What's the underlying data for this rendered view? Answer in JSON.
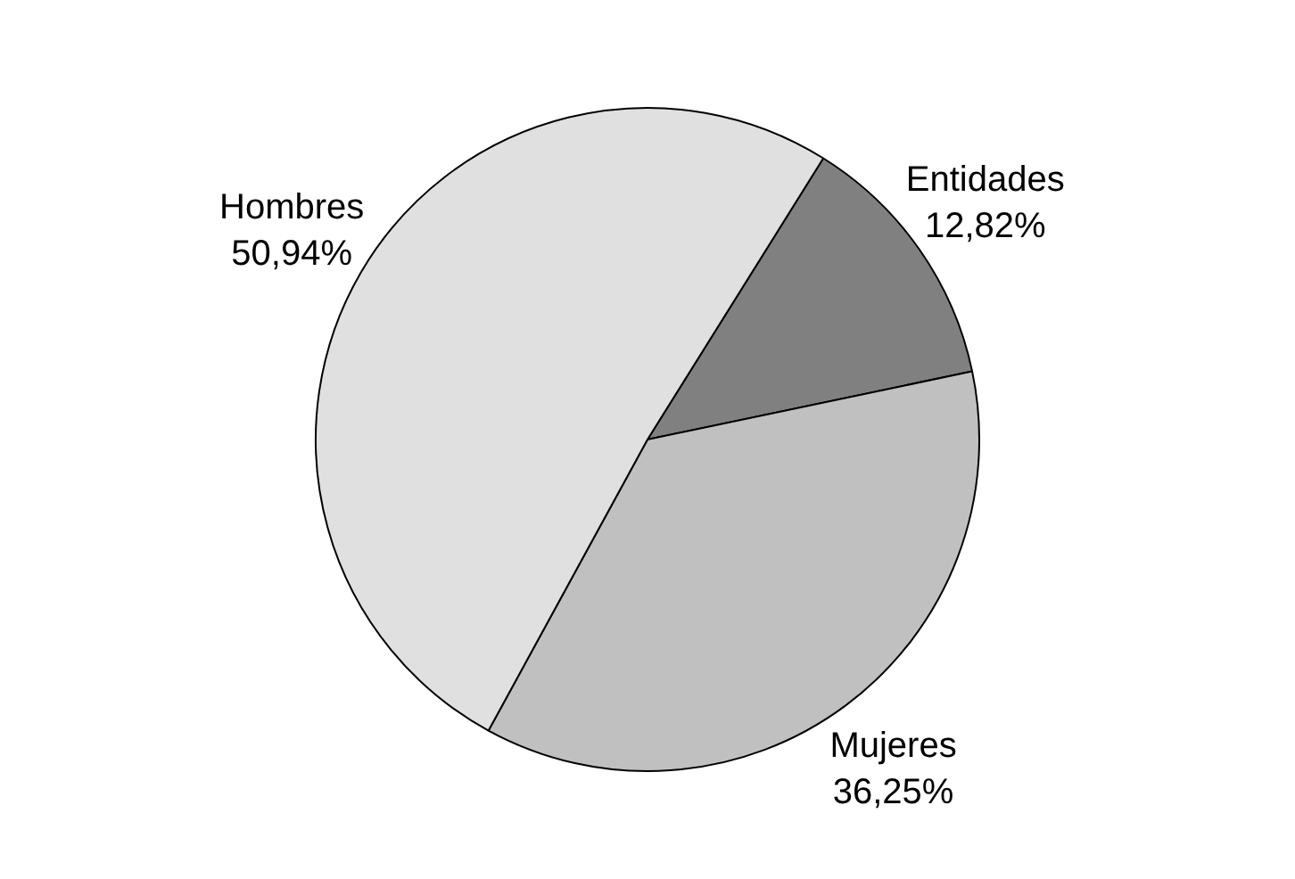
{
  "chart_data": {
    "type": "pie",
    "categories": [
      "Entidades",
      "Mujeres",
      "Hombres"
    ],
    "values": [
      12.82,
      36.25,
      50.94
    ],
    "value_labels": [
      "12,82%",
      "36,25%",
      "50,94%"
    ],
    "colors": [
      "#808080",
      "#c0c0c0",
      "#e0e0e0"
    ],
    "legend": false
  }
}
